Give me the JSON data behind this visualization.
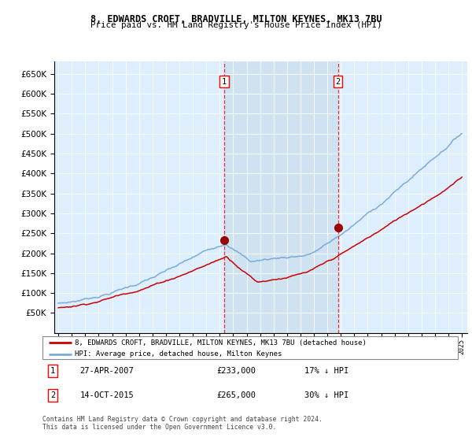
{
  "title1": "8, EDWARDS CROFT, BRADVILLE, MILTON KEYNES, MK13 7BU",
  "title2": "Price paid vs. HM Land Registry's House Price Index (HPI)",
  "legend_line1": "8, EDWARDS CROFT, BRADVILLE, MILTON KEYNES, MK13 7BU (detached house)",
  "legend_line2": "HPI: Average price, detached house, Milton Keynes",
  "annotation1_label": "1",
  "annotation1_date": "27-APR-2007",
  "annotation1_price": "£233,000",
  "annotation1_hpi": "17% ↓ HPI",
  "annotation2_label": "2",
  "annotation2_date": "14-OCT-2015",
  "annotation2_price": "£265,000",
  "annotation2_hpi": "30% ↓ HPI",
  "footer": "Contains HM Land Registry data © Crown copyright and database right 2024.\nThis data is licensed under the Open Government Licence v3.0.",
  "hpi_color": "#7aabdb",
  "price_color": "#cc0000",
  "marker_color": "#990000",
  "background_color": "#ddeeff",
  "shade_color": "#cce0f0",
  "ylim": [
    0,
    680000
  ],
  "yticks": [
    0,
    50000,
    100000,
    150000,
    200000,
    250000,
    300000,
    350000,
    400000,
    450000,
    500000,
    550000,
    600000,
    650000
  ],
  "sale1_x_year": 2007.33,
  "sale1_y": 233000,
  "sale2_x_year": 2015.79,
  "sale2_y": 265000,
  "xmin": 1994.7,
  "xmax": 2025.4
}
